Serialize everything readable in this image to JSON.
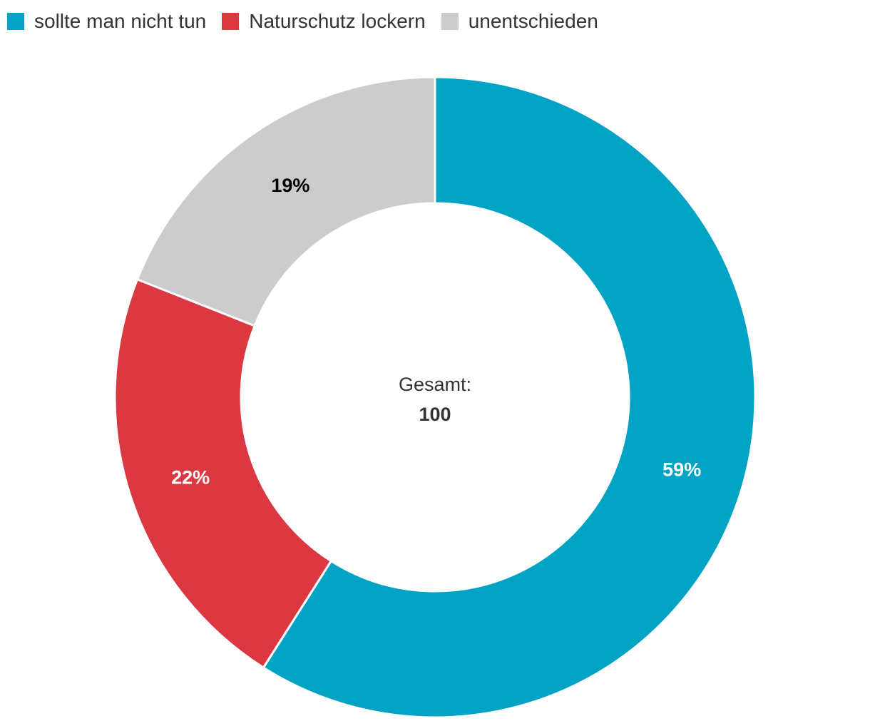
{
  "chart_data": {
    "type": "pie",
    "variant": "donut",
    "categories": [
      "sollte man nicht tun",
      "Naturschutz lockern",
      "unentschieden"
    ],
    "values": [
      59,
      22,
      19
    ],
    "value_labels": [
      "59%",
      "22%",
      "19%"
    ],
    "colors": [
      "#00A3C3",
      "#DC3841",
      "#CCCCCC"
    ],
    "label_colors": [
      "#FFFFFF",
      "#FFFFFF",
      "#000000"
    ],
    "legend_position": "top-left",
    "center": {
      "caption": "Gesamt:",
      "value": "100"
    }
  }
}
